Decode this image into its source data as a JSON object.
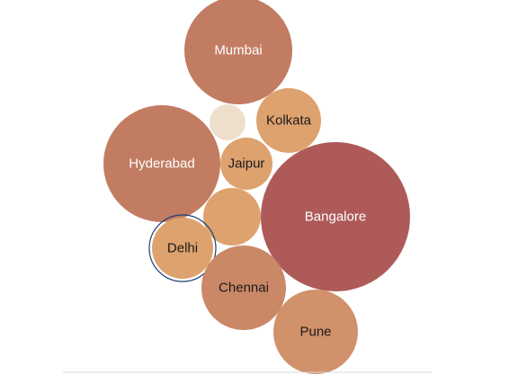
{
  "chart_data": {
    "type": "bubble",
    "bubbles": [
      {
        "label": "Mumbai",
        "color": "#c27c62",
        "text_color": "#ffffff"
      },
      {
        "label": "",
        "color": "#eddfcb",
        "text_color": "#000000"
      },
      {
        "label": "Kolkata",
        "color": "#dea26f",
        "text_color": "#1a1a1a"
      },
      {
        "label": "Hyderabad",
        "color": "#c27c62",
        "text_color": "#ffffff"
      },
      {
        "label": "Jaipur",
        "color": "#dea26f",
        "text_color": "#1a1a1a"
      },
      {
        "label": "",
        "color": "#dea26f",
        "text_color": "#000000"
      },
      {
        "label": "Bangalore",
        "color": "#ae5a58",
        "text_color": "#ffffff"
      },
      {
        "label": "Delhi",
        "color": "#dea26f",
        "text_color": "#1a1a1a",
        "selected": true
      },
      {
        "label": "Chennai",
        "color": "#cb8866",
        "text_color": "#1a1a1a"
      },
      {
        "label": "Pune",
        "color": "#d0916b",
        "text_color": "#1a1a1a"
      }
    ]
  },
  "colors": {
    "background": "#ffffff",
    "selection_ring": "#1f3f72",
    "baseline": "#d9d9d9"
  }
}
